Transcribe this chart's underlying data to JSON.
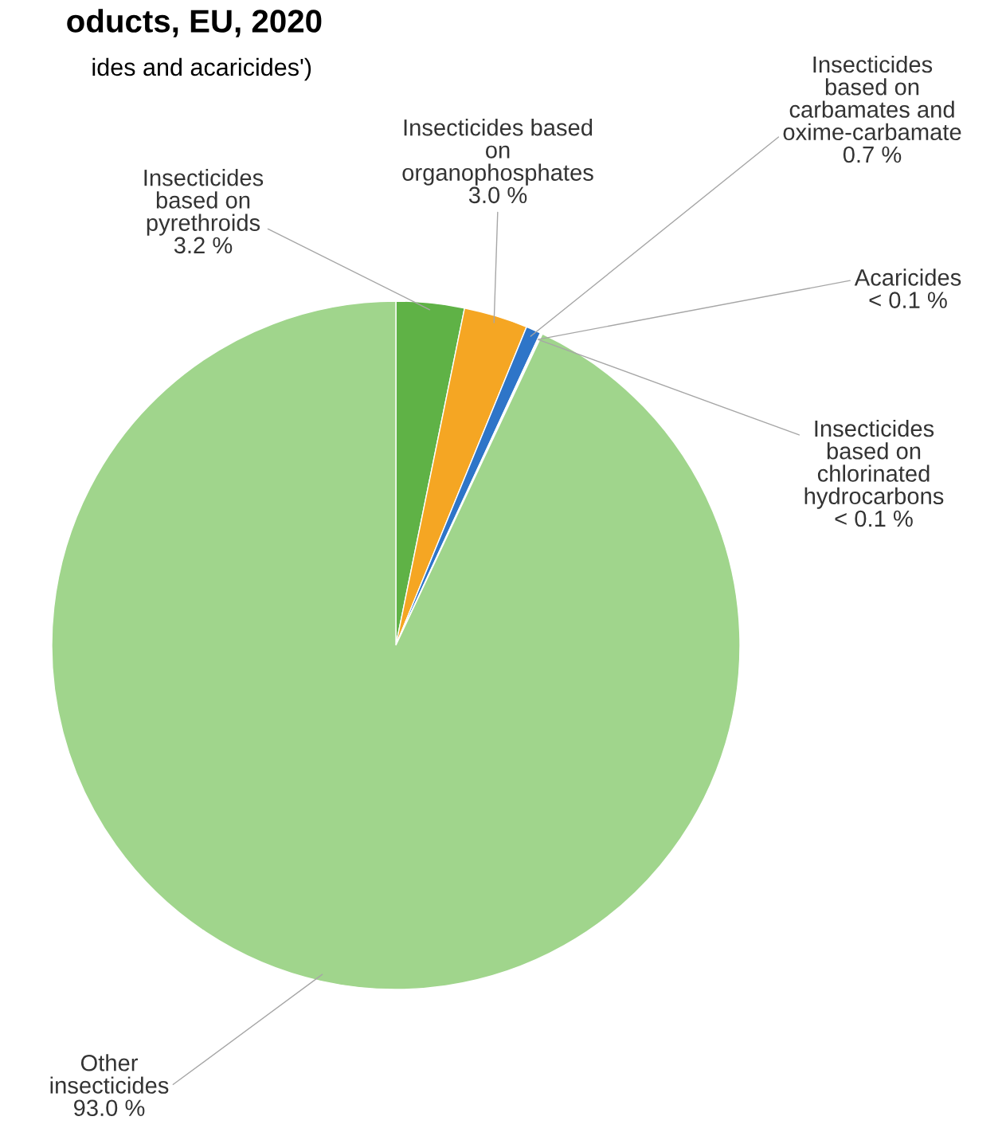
{
  "chart_data": {
    "type": "pie",
    "title": "oducts, EU, 2020",
    "subtitle": "ides and acaricides')",
    "categories": [
      "Insecticides\nbased on\npyrethroids",
      "Insecticides based\non\norganophosphates",
      "Insecticides\nbased on\ncarbamates and\noxime-carbamate",
      "Acaricides",
      "Insecticides\nbased on\nchlorinated\nhydrocarbons",
      "Other\ninsecticides"
    ],
    "values": [
      3.2,
      3.0,
      0.7,
      0.05,
      0.05,
      93.0
    ],
    "value_labels": [
      "3.2 %",
      "3.0 %",
      "0.7 %",
      "< 0.1 %",
      "< 0.1 %",
      "93.0 %"
    ],
    "colors": [
      "#5fb246",
      "#f5a623",
      "#2e75c8",
      "#e0604a",
      "#b0a0c8",
      "#a0d58c"
    ]
  }
}
